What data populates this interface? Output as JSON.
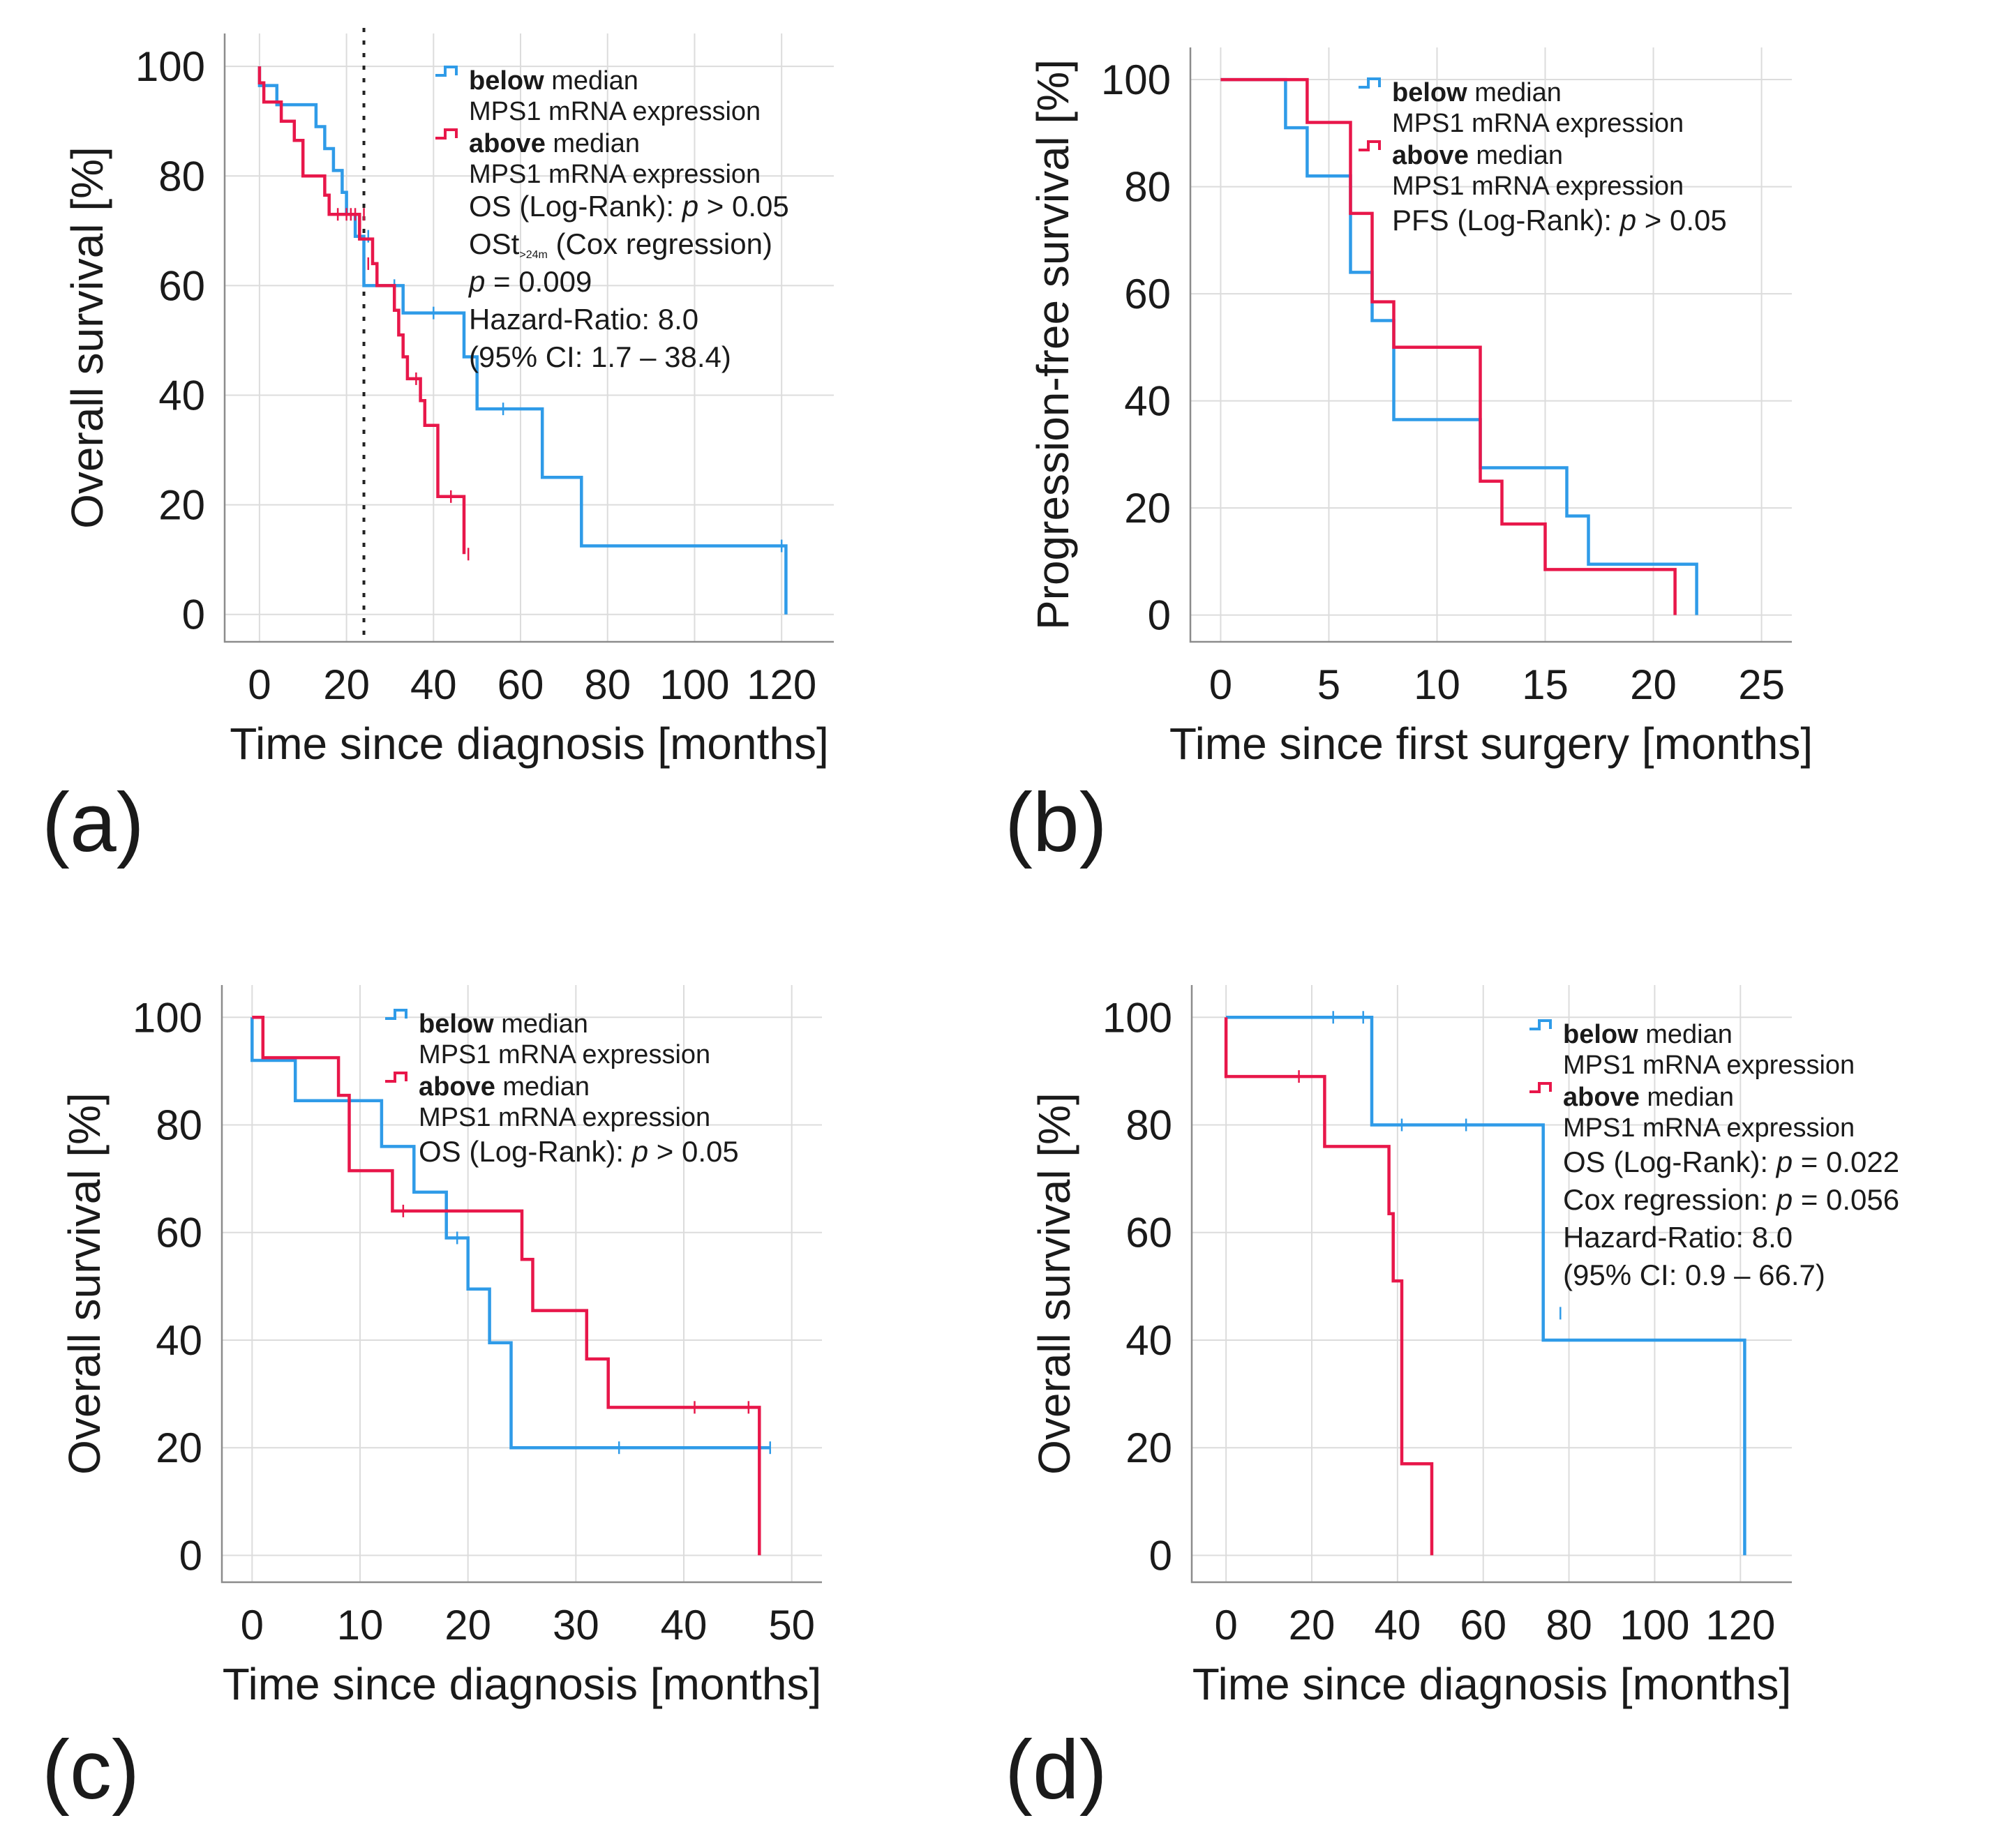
{
  "colors": {
    "below": "#2f9be8",
    "above": "#e8174a"
  },
  "chart_data": [
    {
      "id": "a",
      "type": "line",
      "panel_label": "(a)",
      "xlabel": "Time since diagnosis [months]",
      "ylabel": "Overall survival [%]",
      "xlim": [
        -8,
        132
      ],
      "ylim": [
        -5,
        106
      ],
      "xticks": [
        0,
        20,
        40,
        60,
        80,
        100,
        120
      ],
      "yticks": [
        0,
        20,
        40,
        60,
        80,
        100
      ],
      "vline": 24,
      "legend": [
        {
          "key": "below",
          "bold": "below",
          "rest": " median",
          "line2": "MPS1 mRNA expression"
        },
        {
          "key": "above",
          "bold": "above",
          "rest": " median",
          "line2": "MPS1 mRNA expression"
        }
      ],
      "stats": [
        "OS (Log-Rank): p > 0.05",
        "OSt>24m (Cox regression)",
        "p = 0.009",
        "Hazard-Ratio: 8.0",
        "(95% CI: 1.7 – 38.4)"
      ],
      "stats_sub": ">24m",
      "series": [
        {
          "name": "below median MPS1 mRNA expression",
          "key": "below",
          "points": [
            [
              0,
              100
            ],
            [
              0,
              96.5
            ],
            [
              4,
              96.5
            ],
            [
              4,
              93
            ],
            [
              13,
              93
            ],
            [
              13,
              89
            ],
            [
              15,
              89
            ],
            [
              15,
              85
            ],
            [
              17,
              85
            ],
            [
              17,
              81
            ],
            [
              19,
              81
            ],
            [
              19,
              77
            ],
            [
              20,
              77
            ],
            [
              20,
              73
            ],
            [
              22,
              73
            ],
            [
              22,
              69
            ],
            [
              24,
              69
            ],
            [
              24,
              60
            ],
            [
              33,
              60
            ],
            [
              33,
              55
            ],
            [
              47,
              55
            ],
            [
              47,
              47
            ],
            [
              50,
              47
            ],
            [
              50,
              37.5
            ],
            [
              65,
              37.5
            ],
            [
              65,
              25
            ],
            [
              74,
              25
            ],
            [
              74,
              12.5
            ],
            [
              121,
              12.5
            ],
            [
              121,
              0
            ]
          ],
          "censors": [
            [
              25,
              69
            ],
            [
              31,
              60
            ],
            [
              40,
              55
            ],
            [
              56,
              37.5
            ],
            [
              120,
              12.5
            ]
          ]
        },
        {
          "name": "above median MPS1 mRNA expression",
          "key": "above",
          "points": [
            [
              0,
              100
            ],
            [
              0,
              97
            ],
            [
              1,
              97
            ],
            [
              1,
              93.5
            ],
            [
              5,
              93.5
            ],
            [
              5,
              90
            ],
            [
              8,
              90
            ],
            [
              8,
              86.5
            ],
            [
              10,
              86.5
            ],
            [
              10,
              80
            ],
            [
              15,
              80
            ],
            [
              15,
              76.5
            ],
            [
              16,
              76.5
            ],
            [
              16,
              73
            ],
            [
              23,
              73
            ],
            [
              23,
              68.5
            ],
            [
              26,
              68.5
            ],
            [
              26,
              64
            ],
            [
              27,
              64
            ],
            [
              27,
              60
            ],
            [
              31,
              60
            ],
            [
              31,
              55.5
            ],
            [
              32,
              55.5
            ],
            [
              32,
              51
            ],
            [
              33,
              51
            ],
            [
              33,
              47
            ],
            [
              34,
              47
            ],
            [
              34,
              43
            ],
            [
              37,
              43
            ],
            [
              37,
              39
            ],
            [
              38,
              39
            ],
            [
              38,
              34.5
            ],
            [
              41,
              34.5
            ],
            [
              41,
              21.5
            ],
            [
              47,
              21.5
            ],
            [
              47,
              11
            ]
          ],
          "censors": [
            [
              18,
              73
            ],
            [
              20,
              73
            ],
            [
              21,
              73
            ],
            [
              22,
              73
            ],
            [
              24,
              73
            ],
            [
              25,
              64
            ],
            [
              36,
              43
            ],
            [
              44,
              21.5
            ],
            [
              48,
              11
            ]
          ]
        }
      ]
    },
    {
      "id": "b",
      "type": "line",
      "panel_label": "(b)",
      "xlabel": "Time since first surgery [months]",
      "ylabel": "Progression-free survival [%]",
      "xlim": [
        -1.4,
        26.4
      ],
      "ylim": [
        -5,
        106
      ],
      "xticks": [
        0,
        5,
        10,
        15,
        20,
        25
      ],
      "yticks": [
        0,
        20,
        40,
        60,
        80,
        100
      ],
      "legend": [
        {
          "key": "below",
          "bold": "below",
          "rest": " median",
          "line2": "MPS1 mRNA expression"
        },
        {
          "key": "above",
          "bold": "above",
          "rest": " median",
          "line2": "MPS1 mRNA expression"
        }
      ],
      "stats": [
        "PFS (Log-Rank): p > 0.05"
      ],
      "series": [
        {
          "name": "below median MPS1 mRNA expression",
          "key": "below",
          "points": [
            [
              0,
              100
            ],
            [
              3,
              100
            ],
            [
              3,
              91
            ],
            [
              4,
              91
            ],
            [
              4,
              82
            ],
            [
              6,
              82
            ],
            [
              6,
              64
            ],
            [
              7,
              64
            ],
            [
              7,
              55
            ],
            [
              8,
              55
            ],
            [
              8,
              36.5
            ],
            [
              12,
              36.5
            ],
            [
              12,
              27.5
            ],
            [
              16,
              27.5
            ],
            [
              16,
              18.5
            ],
            [
              17,
              18.5
            ],
            [
              17,
              9.5
            ],
            [
              22,
              9.5
            ],
            [
              22,
              0
            ]
          ],
          "censors": []
        },
        {
          "name": "above median MPS1 mRNA expression",
          "key": "above",
          "points": [
            [
              0,
              100
            ],
            [
              4,
              100
            ],
            [
              4,
              92
            ],
            [
              6,
              92
            ],
            [
              6,
              75
            ],
            [
              7,
              75
            ],
            [
              7,
              58.5
            ],
            [
              8,
              58.5
            ],
            [
              8,
              50
            ],
            [
              12,
              50
            ],
            [
              12,
              25
            ],
            [
              13,
              25
            ],
            [
              13,
              17
            ],
            [
              15,
              17
            ],
            [
              15,
              8.5
            ],
            [
              21,
              8.5
            ],
            [
              21,
              0
            ]
          ],
          "censors": []
        }
      ]
    },
    {
      "id": "c",
      "type": "line",
      "panel_label": "(c)",
      "xlabel": "Time since diagnosis [months]",
      "ylabel": "Overall survival [%]",
      "xlim": [
        -2.8,
        52.8
      ],
      "ylim": [
        -5,
        106
      ],
      "xticks": [
        0,
        10,
        20,
        30,
        40,
        50
      ],
      "yticks": [
        0,
        20,
        40,
        60,
        80,
        100
      ],
      "legend": [
        {
          "key": "below",
          "bold": "below",
          "rest": " median",
          "line2": "MPS1 mRNA expression"
        },
        {
          "key": "above",
          "bold": "above",
          "rest": " median",
          "line2": "MPS1 mRNA expression"
        }
      ],
      "stats": [
        "OS (Log-Rank): p > 0.05"
      ],
      "series": [
        {
          "name": "below median MPS1 mRNA expression",
          "key": "below",
          "points": [
            [
              0,
              100
            ],
            [
              0,
              92
            ],
            [
              4,
              92
            ],
            [
              4,
              84.5
            ],
            [
              12,
              84.5
            ],
            [
              12,
              76
            ],
            [
              15,
              76
            ],
            [
              15,
              67.5
            ],
            [
              18,
              67.5
            ],
            [
              18,
              59
            ],
            [
              20,
              59
            ],
            [
              20,
              49.5
            ],
            [
              22,
              49.5
            ],
            [
              22,
              39.5
            ],
            [
              24,
              39.5
            ],
            [
              24,
              20
            ],
            [
              48,
              20
            ]
          ],
          "censors": [
            [
              19,
              59
            ],
            [
              34,
              20
            ],
            [
              47,
              20
            ],
            [
              48,
              20
            ]
          ]
        },
        {
          "name": "above median MPS1 mRNA expression",
          "key": "above",
          "points": [
            [
              0,
              100
            ],
            [
              1,
              100
            ],
            [
              1,
              92.5
            ],
            [
              8,
              92.5
            ],
            [
              8,
              85.5
            ],
            [
              9,
              85.5
            ],
            [
              9,
              71.5
            ],
            [
              13,
              71.5
            ],
            [
              13,
              64
            ],
            [
              25,
              64
            ],
            [
              25,
              55
            ],
            [
              26,
              55
            ],
            [
              26,
              45.5
            ],
            [
              31,
              45.5
            ],
            [
              31,
              36.5
            ],
            [
              33,
              36.5
            ],
            [
              33,
              27.5
            ],
            [
              47,
              27.5
            ],
            [
              47,
              0
            ]
          ],
          "censors": [
            [
              14,
              64
            ],
            [
              41,
              27.5
            ],
            [
              46,
              27.5
            ]
          ]
        }
      ]
    },
    {
      "id": "d",
      "type": "line",
      "panel_label": "(d)",
      "xlabel": "Time since diagnosis [months]",
      "ylabel": "Overall survival [%]",
      "xlim": [
        -8,
        132
      ],
      "ylim": [
        -5,
        106
      ],
      "xticks": [
        0,
        20,
        40,
        60,
        80,
        100,
        120
      ],
      "yticks": [
        0,
        20,
        40,
        60,
        80,
        100
      ],
      "legend": [
        {
          "key": "below",
          "bold": "below",
          "rest": " median",
          "line2": "MPS1 mRNA expression"
        },
        {
          "key": "above",
          "bold": "above",
          "rest": " median",
          "line2": "MPS1 mRNA expression"
        }
      ],
      "stats": [
        "OS (Log-Rank): p = 0.022",
        "Cox regression: p = 0.056",
        "Hazard-Ratio: 8.0",
        "(95% CI: 0.9 – 66.7)"
      ],
      "series": [
        {
          "name": "below median MPS1 mRNA expression",
          "key": "below",
          "points": [
            [
              0,
              100
            ],
            [
              34,
              100
            ],
            [
              34,
              80
            ],
            [
              74,
              80
            ],
            [
              74,
              40
            ],
            [
              121,
              40
            ],
            [
              121,
              0
            ]
          ],
          "censors": [
            [
              25,
              100
            ],
            [
              32,
              100
            ],
            [
              41,
              80
            ],
            [
              56,
              80
            ],
            [
              78,
              45
            ]
          ]
        },
        {
          "name": "above median MPS1 mRNA expression",
          "key": "above",
          "points": [
            [
              0,
              100
            ],
            [
              0,
              89
            ],
            [
              23,
              89
            ],
            [
              23,
              76
            ],
            [
              38,
              76
            ],
            [
              38,
              63.5
            ],
            [
              39,
              63.5
            ],
            [
              39,
              51
            ],
            [
              41,
              51
            ],
            [
              41,
              17
            ],
            [
              48,
              17
            ],
            [
              48,
              0
            ]
          ],
          "censors": [
            [
              17,
              89
            ]
          ]
        }
      ]
    }
  ]
}
